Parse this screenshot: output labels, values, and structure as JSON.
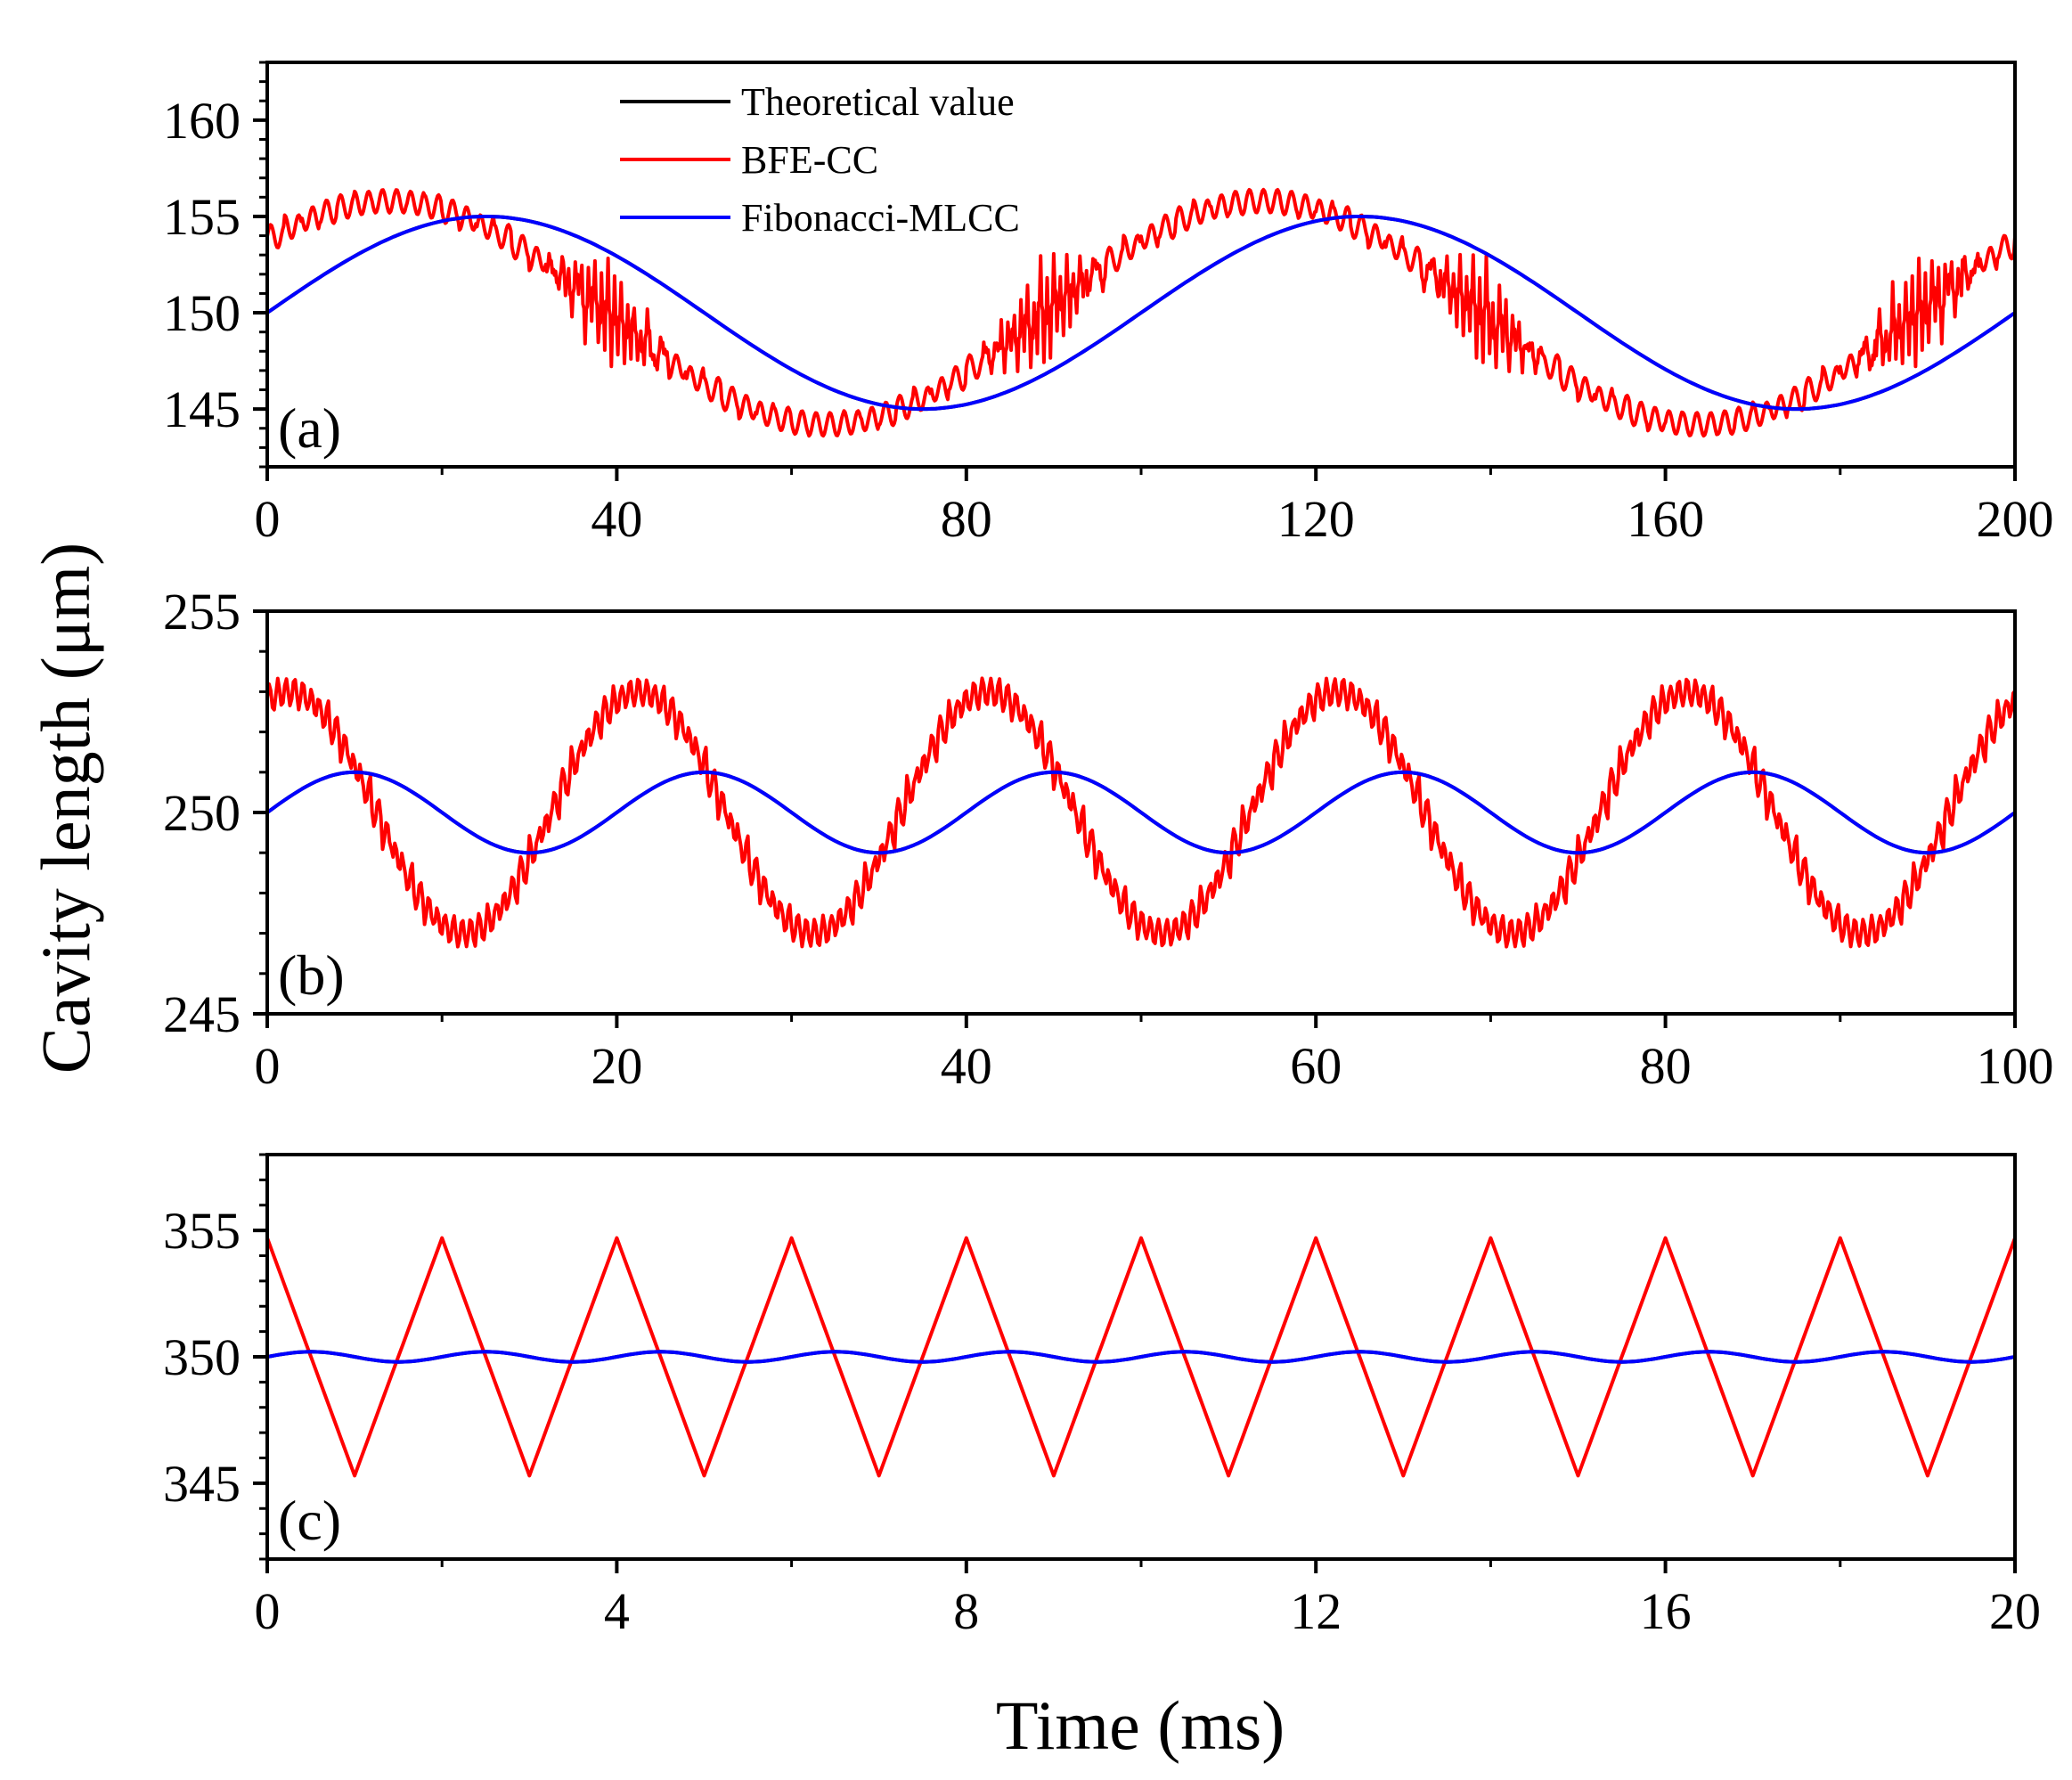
{
  "figure": {
    "ylabel": "Cavity length (μm)",
    "xlabel": "Time (ms)"
  },
  "legend": {
    "items": [
      {
        "label": "Theoretical value",
        "color": "#000000"
      },
      {
        "label": "BFE-CC",
        "color": "#ff0000"
      },
      {
        "label": "Fibonacci-MLCC",
        "color": "#0000ff"
      }
    ]
  },
  "chart_data": [
    {
      "panel": "(a)",
      "type": "line",
      "xlim": [
        0,
        200
      ],
      "ylim": [
        142,
        163
      ],
      "xticks": [
        0,
        40,
        80,
        120,
        160,
        200
      ],
      "xtick_labels": [
        "0",
        "40",
        "80",
        "120",
        "160",
        "200"
      ],
      "yticks": [
        145,
        150,
        155,
        160
      ],
      "ytick_labels": [
        "145",
        "150",
        "155",
        "160"
      ],
      "series": [
        {
          "name": "Theoretical value",
          "color": "#000000",
          "model": {
            "kind": "sine",
            "center": 150,
            "amplitude": 5,
            "period": 100,
            "x_range": [
              0,
              200
            ],
            "samples": 401
          }
        },
        {
          "name": "Fibonacci-MLCC",
          "color": "#0000ff",
          "model": {
            "kind": "sine",
            "center": 150,
            "amplitude": 5,
            "period": 100,
            "x_range": [
              0,
              200
            ],
            "samples": 401
          }
        },
        {
          "name": "BFE-CC",
          "color": "#ff0000",
          "model": {
            "kind": "stepped_sine",
            "center": 150,
            "amplitude": 5.8,
            "period": 100,
            "phase_lead": 12,
            "x_range": [
              0,
              200
            ],
            "step": 2,
            "samples": 1601,
            "ripple": 0.6,
            "spike_amplitude": 2.4
          }
        }
      ]
    },
    {
      "panel": "(b)",
      "type": "line",
      "xlim": [
        0,
        100
      ],
      "ylim": [
        245,
        255
      ],
      "xticks": [
        0,
        20,
        40,
        60,
        80,
        100
      ],
      "xtick_labels": [
        "0",
        "20",
        "40",
        "60",
        "80",
        "100"
      ],
      "yticks": [
        245,
        250,
        255
      ],
      "ytick_labels": [
        "245",
        "250",
        "255"
      ],
      "series": [
        {
          "name": "Theoretical value",
          "color": "#000000",
          "model": {
            "kind": "sine",
            "center": 250,
            "amplitude": 1,
            "period": 20,
            "x_range": [
              0,
              100
            ],
            "samples": 401
          }
        },
        {
          "name": "Fibonacci-MLCC",
          "color": "#0000ff",
          "model": {
            "kind": "sine",
            "center": 250,
            "amplitude": 1,
            "period": 20,
            "x_range": [
              0,
              100
            ],
            "samples": 401
          }
        },
        {
          "name": "BFE-CC",
          "color": "#ff0000",
          "model": {
            "kind": "stepped_sine",
            "center": 250,
            "amplitude": 3,
            "period": 20,
            "phase_lead": 4,
            "x_range": [
              0,
              100
            ],
            "step": 0.6,
            "samples": 1001,
            "ripple": 0.35,
            "spike_amplitude": 0
          }
        }
      ]
    },
    {
      "panel": "(c)",
      "type": "line",
      "xlim": [
        0,
        20
      ],
      "ylim": [
        342,
        358
      ],
      "xticks": [
        0,
        4,
        8,
        12,
        16,
        20
      ],
      "xtick_labels": [
        "0",
        "4",
        "8",
        "12",
        "16",
        "20"
      ],
      "yticks": [
        345,
        350,
        355
      ],
      "ytick_labels": [
        "345",
        "350",
        "355"
      ],
      "series": [
        {
          "name": "Theoretical value",
          "color": "#000000",
          "model": {
            "kind": "sine",
            "center": 350,
            "amplitude": 0.2,
            "period": 2,
            "x_range": [
              0,
              20
            ],
            "samples": 401
          }
        },
        {
          "name": "Fibonacci-MLCC",
          "color": "#0000ff",
          "model": {
            "kind": "sine",
            "center": 350,
            "amplitude": 0.2,
            "period": 2,
            "x_range": [
              0,
              20
            ],
            "samples": 401
          }
        },
        {
          "name": "BFE-CC",
          "color": "#ff0000",
          "model": {
            "kind": "triangle",
            "center": 350,
            "amplitude": 4.7,
            "period": 2,
            "phase_start": "peak",
            "x_range": [
              0,
              20
            ],
            "samples": 401
          }
        }
      ]
    }
  ]
}
